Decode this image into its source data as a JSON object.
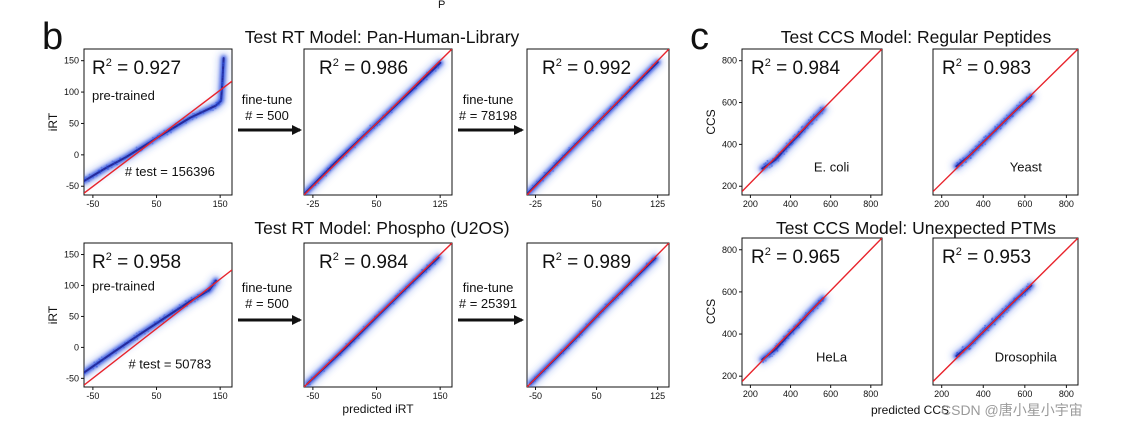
{
  "figure": {
    "panel_b": "b",
    "panel_c": "c",
    "stray_label": "P",
    "xlabel_rt": "predicted iRT",
    "xlabel_ccs": "predicted CCS",
    "watermark": "CSDN @唐小星小宇宙",
    "colors": {
      "points": "#2a4fe0",
      "dense": "#1a1a8a",
      "fit": "#e8242c",
      "axis": "#111111",
      "background": "#ffffff"
    }
  },
  "chart_data": [
    {
      "type": "scatter",
      "title": "Test RT Model: Pan-Human-Library",
      "xlabel": "",
      "ylabel": "iRT",
      "xticks": [
        "-50",
        "50",
        "150"
      ],
      "yticks": [
        "-50",
        "0",
        "50",
        "100",
        "150"
      ],
      "xlim": [
        -65,
        165
      ],
      "ylim": [
        -65,
        175
      ],
      "annotation": "R² = 0.927",
      "r2_base": "R",
      "r2_exp": "2",
      "r2_value": " = 0.927",
      "note": "pre-trained",
      "n_test": "# test = 156396",
      "fit_line": {
        "x": [
          -65,
          165
        ],
        "y": [
          -62,
          122
        ]
      },
      "trend": {
        "x": [
          -65,
          -30,
          0,
          50,
          100,
          140,
          148,
          150,
          152
        ],
        "y": [
          -42,
          -20,
          -3,
          30,
          62,
          82,
          90,
          120,
          160
        ]
      }
    },
    {
      "type": "scatter",
      "title": "",
      "xlabel": "",
      "ylabel": "",
      "xticks": [
        "-25",
        "50",
        "125"
      ],
      "yticks": [],
      "xlim": [
        -40,
        150
      ],
      "ylim": [
        -40,
        150
      ],
      "annotation": "R² = 0.986",
      "r2_base": "R",
      "r2_exp": "2",
      "r2_value": " = 0.986",
      "arrow_label": [
        "fine-tune",
        "# = 500"
      ],
      "fit_line": {
        "x": [
          -40,
          150
        ],
        "y": [
          -40,
          150
        ]
      },
      "trend": {
        "x": [
          -38,
          0,
          50,
          100,
          135
        ],
        "y": [
          -37,
          2,
          50,
          98,
          132
        ]
      }
    },
    {
      "type": "scatter",
      "title": "",
      "xlabel": "",
      "ylabel": "",
      "xticks": [
        "-25",
        "50",
        "125"
      ],
      "yticks": [],
      "xlim": [
        -40,
        150
      ],
      "ylim": [
        -40,
        150
      ],
      "annotation": "R² = 0.992",
      "r2_base": "R",
      "r2_exp": "2",
      "r2_value": " = 0.992",
      "arrow_label": [
        "fine-tune",
        "# = 78198"
      ],
      "fit_line": {
        "x": [
          -40,
          150
        ],
        "y": [
          -40,
          150
        ]
      },
      "trend": {
        "x": [
          -38,
          0,
          50,
          100,
          135
        ],
        "y": [
          -37,
          1,
          50,
          99,
          133
        ]
      }
    },
    {
      "type": "scatter",
      "title": "Test RT Model: Phospho (U2OS)",
      "xlabel": "",
      "ylabel": "iRT",
      "xticks": [
        "-50",
        "50",
        "150"
      ],
      "yticks": [
        "-50",
        "0",
        "50",
        "100",
        "150"
      ],
      "xlim": [
        -65,
        165
      ],
      "ylim": [
        -65,
        165
      ],
      "annotation": "R² = 0.958",
      "r2_base": "R",
      "r2_exp": "2",
      "r2_value": " = 0.958",
      "note": "pre-trained",
      "n_test": "# test = 50783",
      "fit_line": {
        "x": [
          -65,
          165
        ],
        "y": [
          -62,
          122
        ]
      },
      "trend": {
        "x": [
          -65,
          -20,
          20,
          60,
          100,
          130,
          140
        ],
        "y": [
          -42,
          -10,
          18,
          45,
          72,
          90,
          105
        ]
      }
    },
    {
      "type": "scatter",
      "title": "",
      "xlabel": "",
      "ylabel": "",
      "xticks": [
        "-50",
        "50",
        "150"
      ],
      "yticks": [],
      "xlim": [
        -60,
        160
      ],
      "ylim": [
        -60,
        160
      ],
      "annotation": "R² = 0.984",
      "r2_base": "R",
      "r2_exp": "2",
      "r2_value": " = 0.984",
      "arrow_label": [
        "fine-tune",
        "# = 500"
      ],
      "fit_line": {
        "x": [
          -60,
          160
        ],
        "y": [
          -60,
          160
        ]
      },
      "trend": {
        "x": [
          -55,
          0,
          50,
          100,
          140
        ],
        "y": [
          -55,
          -2,
          49,
          99,
          138
        ]
      }
    },
    {
      "type": "scatter",
      "title": "",
      "xlabel": "",
      "ylabel": "",
      "xticks": [
        "-50",
        "50",
        "125"
      ],
      "yticks": [],
      "xlim": [
        -60,
        150
      ],
      "ylim": [
        -60,
        150
      ],
      "annotation": "R² = 0.989",
      "r2_base": "R",
      "r2_exp": "2",
      "r2_value": " = 0.989",
      "arrow_label": [
        "fine-tune",
        "# = 25391"
      ],
      "fit_line": {
        "x": [
          -60,
          150
        ],
        "y": [
          -60,
          150
        ]
      },
      "trend": {
        "x": [
          -55,
          0,
          50,
          100,
          130
        ],
        "y": [
          -55,
          -1,
          50,
          99,
          128
        ]
      }
    },
    {
      "type": "scatter",
      "title": "Test CCS Model: Regular Peptides",
      "xlabel": "",
      "ylabel": "CCS",
      "xticks": [
        "200",
        "400",
        "600",
        "800"
      ],
      "yticks": [
        "200",
        "400",
        "600",
        "800"
      ],
      "xlim": [
        200,
        820
      ],
      "ylim": [
        185,
        820
      ],
      "annotation": "R² = 0.984",
      "r2_base": "R",
      "r2_exp": "2",
      "r2_value": " = 0.984",
      "sample": "E. coli",
      "fit_line": {
        "x": [
          200,
          820
        ],
        "y": [
          200,
          820
        ]
      },
      "trend": {
        "x": [
          290,
          350,
          400,
          450,
          500,
          560
        ],
        "y": [
          300,
          340,
          395,
          445,
          500,
          560
        ]
      }
    },
    {
      "type": "scatter",
      "title": "",
      "xlabel": "",
      "ylabel": "",
      "xticks": [
        "200",
        "400",
        "600",
        "800"
      ],
      "yticks": [],
      "xlim": [
        200,
        820
      ],
      "ylim": [
        185,
        820
      ],
      "annotation": "R² = 0.983",
      "r2_base": "R",
      "r2_exp": "2",
      "r2_value": " = 0.983",
      "sample": "Yeast",
      "fit_line": {
        "x": [
          200,
          820
        ],
        "y": [
          200,
          820
        ]
      },
      "trend": {
        "x": [
          300,
          350,
          400,
          450,
          500,
          560,
          620
        ],
        "y": [
          310,
          350,
          400,
          450,
          500,
          560,
          615
        ]
      }
    },
    {
      "type": "scatter",
      "title": "Test CCS Model: Unexpected PTMs",
      "xlabel": "",
      "ylabel": "CCS",
      "xticks": [
        "200",
        "400",
        "600",
        "800"
      ],
      "yticks": [
        "200",
        "400",
        "600",
        "800"
      ],
      "xlim": [
        200,
        820
      ],
      "ylim": [
        185,
        820
      ],
      "annotation": "R² = 0.965",
      "r2_base": "R",
      "r2_exp": "2",
      "r2_value": " = 0.965",
      "sample": "HeLa",
      "fit_line": {
        "x": [
          200,
          820
        ],
        "y": [
          200,
          820
        ]
      },
      "trend": {
        "x": [
          290,
          350,
          400,
          450,
          500,
          560
        ],
        "y": [
          295,
          340,
          395,
          445,
          500,
          560
        ]
      }
    },
    {
      "type": "scatter",
      "title": "",
      "xlabel": "",
      "ylabel": "",
      "xticks": [
        "200",
        "400",
        "600",
        "800"
      ],
      "yticks": [],
      "xlim": [
        200,
        820
      ],
      "ylim": [
        185,
        820
      ],
      "annotation": "R² = 0.953",
      "r2_base": "R",
      "r2_exp": "2",
      "r2_value": " = 0.953",
      "sample": "Drosophila",
      "fit_line": {
        "x": [
          200,
          820
        ],
        "y": [
          200,
          820
        ]
      },
      "trend": {
        "x": [
          300,
          350,
          400,
          450,
          500,
          560,
          620
        ],
        "y": [
          310,
          350,
          400,
          450,
          500,
          560,
          615
        ]
      }
    }
  ]
}
